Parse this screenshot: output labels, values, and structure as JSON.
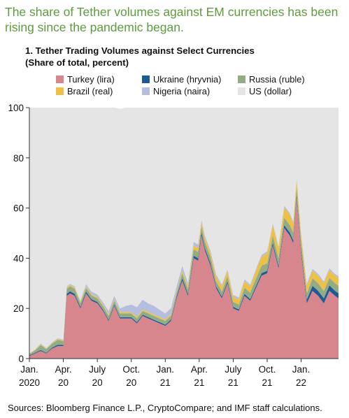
{
  "headline": "The share of Tether volumes against EM currencies has been rising since the pandemic began.",
  "source": "Sources: Bloomberg Finance L.P., CryptoCompare; and IMF staff calculations.",
  "chart_data": {
    "type": "area",
    "stacked": true,
    "title": "1. Tether Trading Volumes against Select Currencies",
    "subtitle": "(Share of total, percent)",
    "ylim": [
      0,
      100
    ],
    "yticks": [
      0,
      20,
      40,
      60,
      80,
      100
    ],
    "xticks": [
      {
        "t": 0,
        "line1": "Jan.",
        "line2": "2020"
      },
      {
        "t": 3,
        "line1": "Apr.",
        "line2": "20"
      },
      {
        "t": 6,
        "line1": "July",
        "line2": "20"
      },
      {
        "t": 9,
        "line1": "Oct.",
        "line2": "20"
      },
      {
        "t": 12,
        "line1": "Jan.",
        "line2": "21"
      },
      {
        "t": 15,
        "line1": "Apr.",
        "line2": "21"
      },
      {
        "t": 18,
        "line1": "July",
        "line2": "21"
      },
      {
        "t": 21,
        "line1": "Oct.",
        "line2": "21"
      },
      {
        "t": 24,
        "line1": "Jan.",
        "line2": "22"
      }
    ],
    "xlim": [
      0,
      27.3
    ],
    "x": [
      0,
      0.5,
      1,
      1.5,
      2,
      2.5,
      3,
      3.3,
      3.6,
      4,
      4.5,
      5,
      5.5,
      6,
      6.5,
      7,
      7.5,
      8,
      8.5,
      9,
      9.5,
      10,
      10.5,
      11,
      11.5,
      12,
      12.5,
      13,
      13.5,
      14,
      14.5,
      14.9,
      15.2,
      15.5,
      16,
      16.5,
      17,
      17.5,
      18,
      18.5,
      19,
      19.5,
      20,
      20.5,
      21,
      21.5,
      22,
      22.5,
      23,
      23.3,
      23.6,
      24,
      24.5,
      25,
      25.5,
      26,
      26.5,
      27,
      27.3
    ],
    "series": [
      {
        "name": "Turkey (lira)",
        "color": "#d7868e",
        "values": [
          1,
          2,
          3,
          2,
          4,
          5,
          5,
          25,
          26,
          25,
          20,
          26,
          23,
          22,
          19,
          15,
          21,
          16,
          16,
          16,
          14,
          17,
          16,
          15,
          14,
          13,
          15,
          24,
          31,
          25,
          40,
          39,
          49,
          43,
          37,
          28,
          24,
          30,
          20,
          19,
          25,
          23,
          28,
          33,
          34,
          45,
          36,
          52,
          49,
          46,
          64,
          42,
          22,
          27,
          25,
          22,
          27,
          25,
          24
        ]
      },
      {
        "name": "Ukraine (hryvnia)",
        "color": "#1f5a96",
        "values": [
          0.3,
          0.3,
          0.4,
          0.3,
          0.4,
          0.5,
          0.5,
          0.8,
          0.8,
          0.8,
          0.6,
          0.7,
          0.6,
          0.6,
          0.5,
          0.5,
          0.6,
          0.5,
          0.5,
          0.5,
          0.5,
          0.5,
          0.5,
          0.5,
          0.5,
          0.5,
          0.6,
          0.8,
          1,
          0.8,
          1,
          1,
          1.2,
          1,
          1,
          0.8,
          0.7,
          0.8,
          0.6,
          0.6,
          0.8,
          0.7,
          0.8,
          1,
          1,
          1.2,
          1,
          1.2,
          1.2,
          1.2,
          1.4,
          1.2,
          1.5,
          2,
          2,
          2,
          2.2,
          2,
          2
        ]
      },
      {
        "name": "Russia (ruble)",
        "color": "#94ac84",
        "values": [
          0.5,
          1,
          2,
          1.5,
          1.5,
          2,
          1.5,
          2,
          2,
          2,
          1.5,
          1.5,
          1.5,
          1.5,
          1.5,
          1.5,
          1.5,
          1.5,
          1.5,
          1.5,
          1.5,
          1.5,
          1.5,
          1.5,
          1.5,
          1.5,
          1.5,
          1.5,
          2,
          2,
          2.5,
          2.5,
          2.5,
          2.5,
          2.5,
          2,
          2,
          2,
          2,
          2,
          2.5,
          2.5,
          3,
          3,
          3,
          3,
          3,
          3,
          3,
          3,
          3,
          3,
          2.5,
          3,
          3,
          3,
          3,
          3,
          3
        ]
      },
      {
        "name": "Brazil (real)",
        "color": "#eec144",
        "values": [
          0.2,
          0.2,
          0.3,
          0.2,
          0.3,
          0.3,
          0.3,
          0.5,
          0.5,
          0.5,
          0.5,
          0.5,
          0.5,
          0.5,
          0.5,
          0.5,
          0.5,
          0.5,
          0.5,
          0.5,
          0.5,
          0.5,
          0.5,
          0.5,
          0.5,
          0.5,
          0.5,
          0.5,
          1,
          1,
          1.5,
          1.5,
          1.5,
          1.5,
          1.5,
          2,
          2,
          2,
          2,
          2,
          2.5,
          2.5,
          3,
          3.5,
          4,
          4,
          4,
          4,
          4,
          3.5,
          3,
          3,
          3,
          3,
          3,
          3,
          3,
          3,
          3
        ]
      },
      {
        "name": "Nigeria (naira)",
        "color": "#b5bedc",
        "values": [
          0.1,
          0.2,
          0.3,
          0.2,
          0.3,
          0.3,
          0.3,
          0.5,
          0.5,
          0.5,
          0.5,
          1,
          1,
          1,
          1,
          1.5,
          1.5,
          1.5,
          2.5,
          3,
          4,
          4,
          3.5,
          3.5,
          3,
          2.5,
          2.5,
          2,
          2,
          1.5,
          1.5,
          1.5,
          1,
          1,
          1,
          0.8,
          0.8,
          0.8,
          0.8,
          0.8,
          0.8,
          0.8,
          0.8,
          0.8,
          0.8,
          0.8,
          0.8,
          0.8,
          0.8,
          0.8,
          0.8,
          0.8,
          0.8,
          0.8,
          0.8,
          0.8,
          0.8,
          0.8,
          0.8
        ]
      },
      {
        "name": "US (dollar)",
        "color": "#e5e5e5",
        "values": [
          97.9,
          96.3,
          94,
          95.8,
          93.5,
          91.9,
          92.4,
          71.2,
          70.2,
          71.2,
          76.9,
          70.3,
          73.4,
          74.4,
          77.5,
          81,
          74.9,
          79.5,
          79,
          78.5,
          79.5,
          76.5,
          78,
          79,
          80.5,
          82,
          79.9,
          71.2,
          63,
          69.7,
          53.5,
          54.5,
          44.8,
          51,
          57,
          66.4,
          70.5,
          64.4,
          74.6,
          75.6,
          68.4,
          70.5,
          64.4,
          58.7,
          57.2,
          46,
          55.2,
          39,
          42,
          45.5,
          27.8,
          50,
          70.2,
          64.2,
          66.2,
          69.2,
          64,
          66.2,
          67.2
        ]
      }
    ]
  },
  "legend": [
    {
      "label": "Turkey (lira)",
      "color": "#d7868e"
    },
    {
      "label": "Ukraine (hryvnia)",
      "color": "#1f5a96"
    },
    {
      "label": "Russia (ruble)",
      "color": "#94ac84"
    },
    {
      "label": "Brazil (real)",
      "color": "#eec144"
    },
    {
      "label": "Nigeria (naira)",
      "color": "#b5bedc"
    },
    {
      "label": "US (dollar)",
      "color": "#e5e5e5"
    }
  ]
}
